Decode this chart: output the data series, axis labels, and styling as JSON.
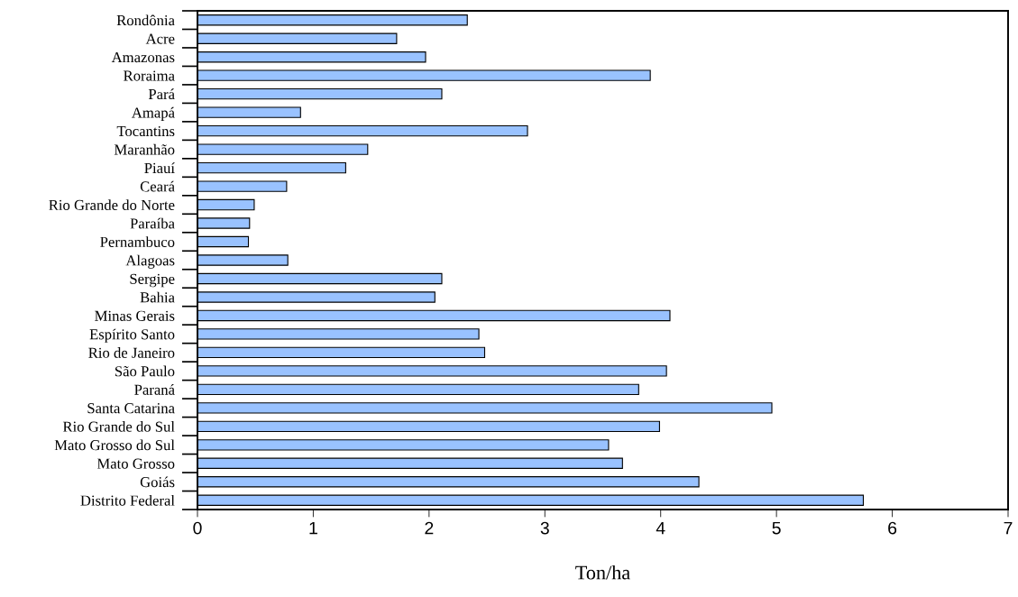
{
  "chart_data": {
    "type": "bar",
    "orientation": "horizontal",
    "xlabel": "Ton/ha",
    "categories": [
      "Rondônia",
      "Acre",
      "Amazonas",
      "Roraima",
      "Pará",
      "Amapá",
      "Tocantins",
      "Maranhão",
      "Piauí",
      "Ceará",
      "Rio Grande do Norte",
      "Paraíba",
      "Pernambuco",
      "Alagoas",
      "Sergipe",
      "Bahia",
      "Minas Gerais",
      "Espírito Santo",
      "Rio de Janeiro",
      "São Paulo",
      "Paraná",
      "Santa Catarina",
      "Rio Grande do Sul",
      "Mato Grosso do Sul",
      "Mato Grosso",
      "Goiás",
      "Distrito Federal"
    ],
    "values": [
      2.33,
      1.72,
      1.97,
      3.91,
      2.11,
      0.89,
      2.85,
      1.47,
      1.28,
      0.77,
      0.49,
      0.45,
      0.44,
      0.78,
      2.11,
      2.05,
      4.08,
      2.43,
      2.48,
      4.05,
      3.81,
      4.96,
      3.99,
      3.55,
      3.67,
      4.33,
      5.75
    ],
    "color": "#99c2ff",
    "xlim": [
      0,
      7
    ],
    "xticks": [
      0,
      1,
      2,
      3,
      4,
      5,
      6,
      7
    ],
    "grid": false,
    "legend": false
  }
}
